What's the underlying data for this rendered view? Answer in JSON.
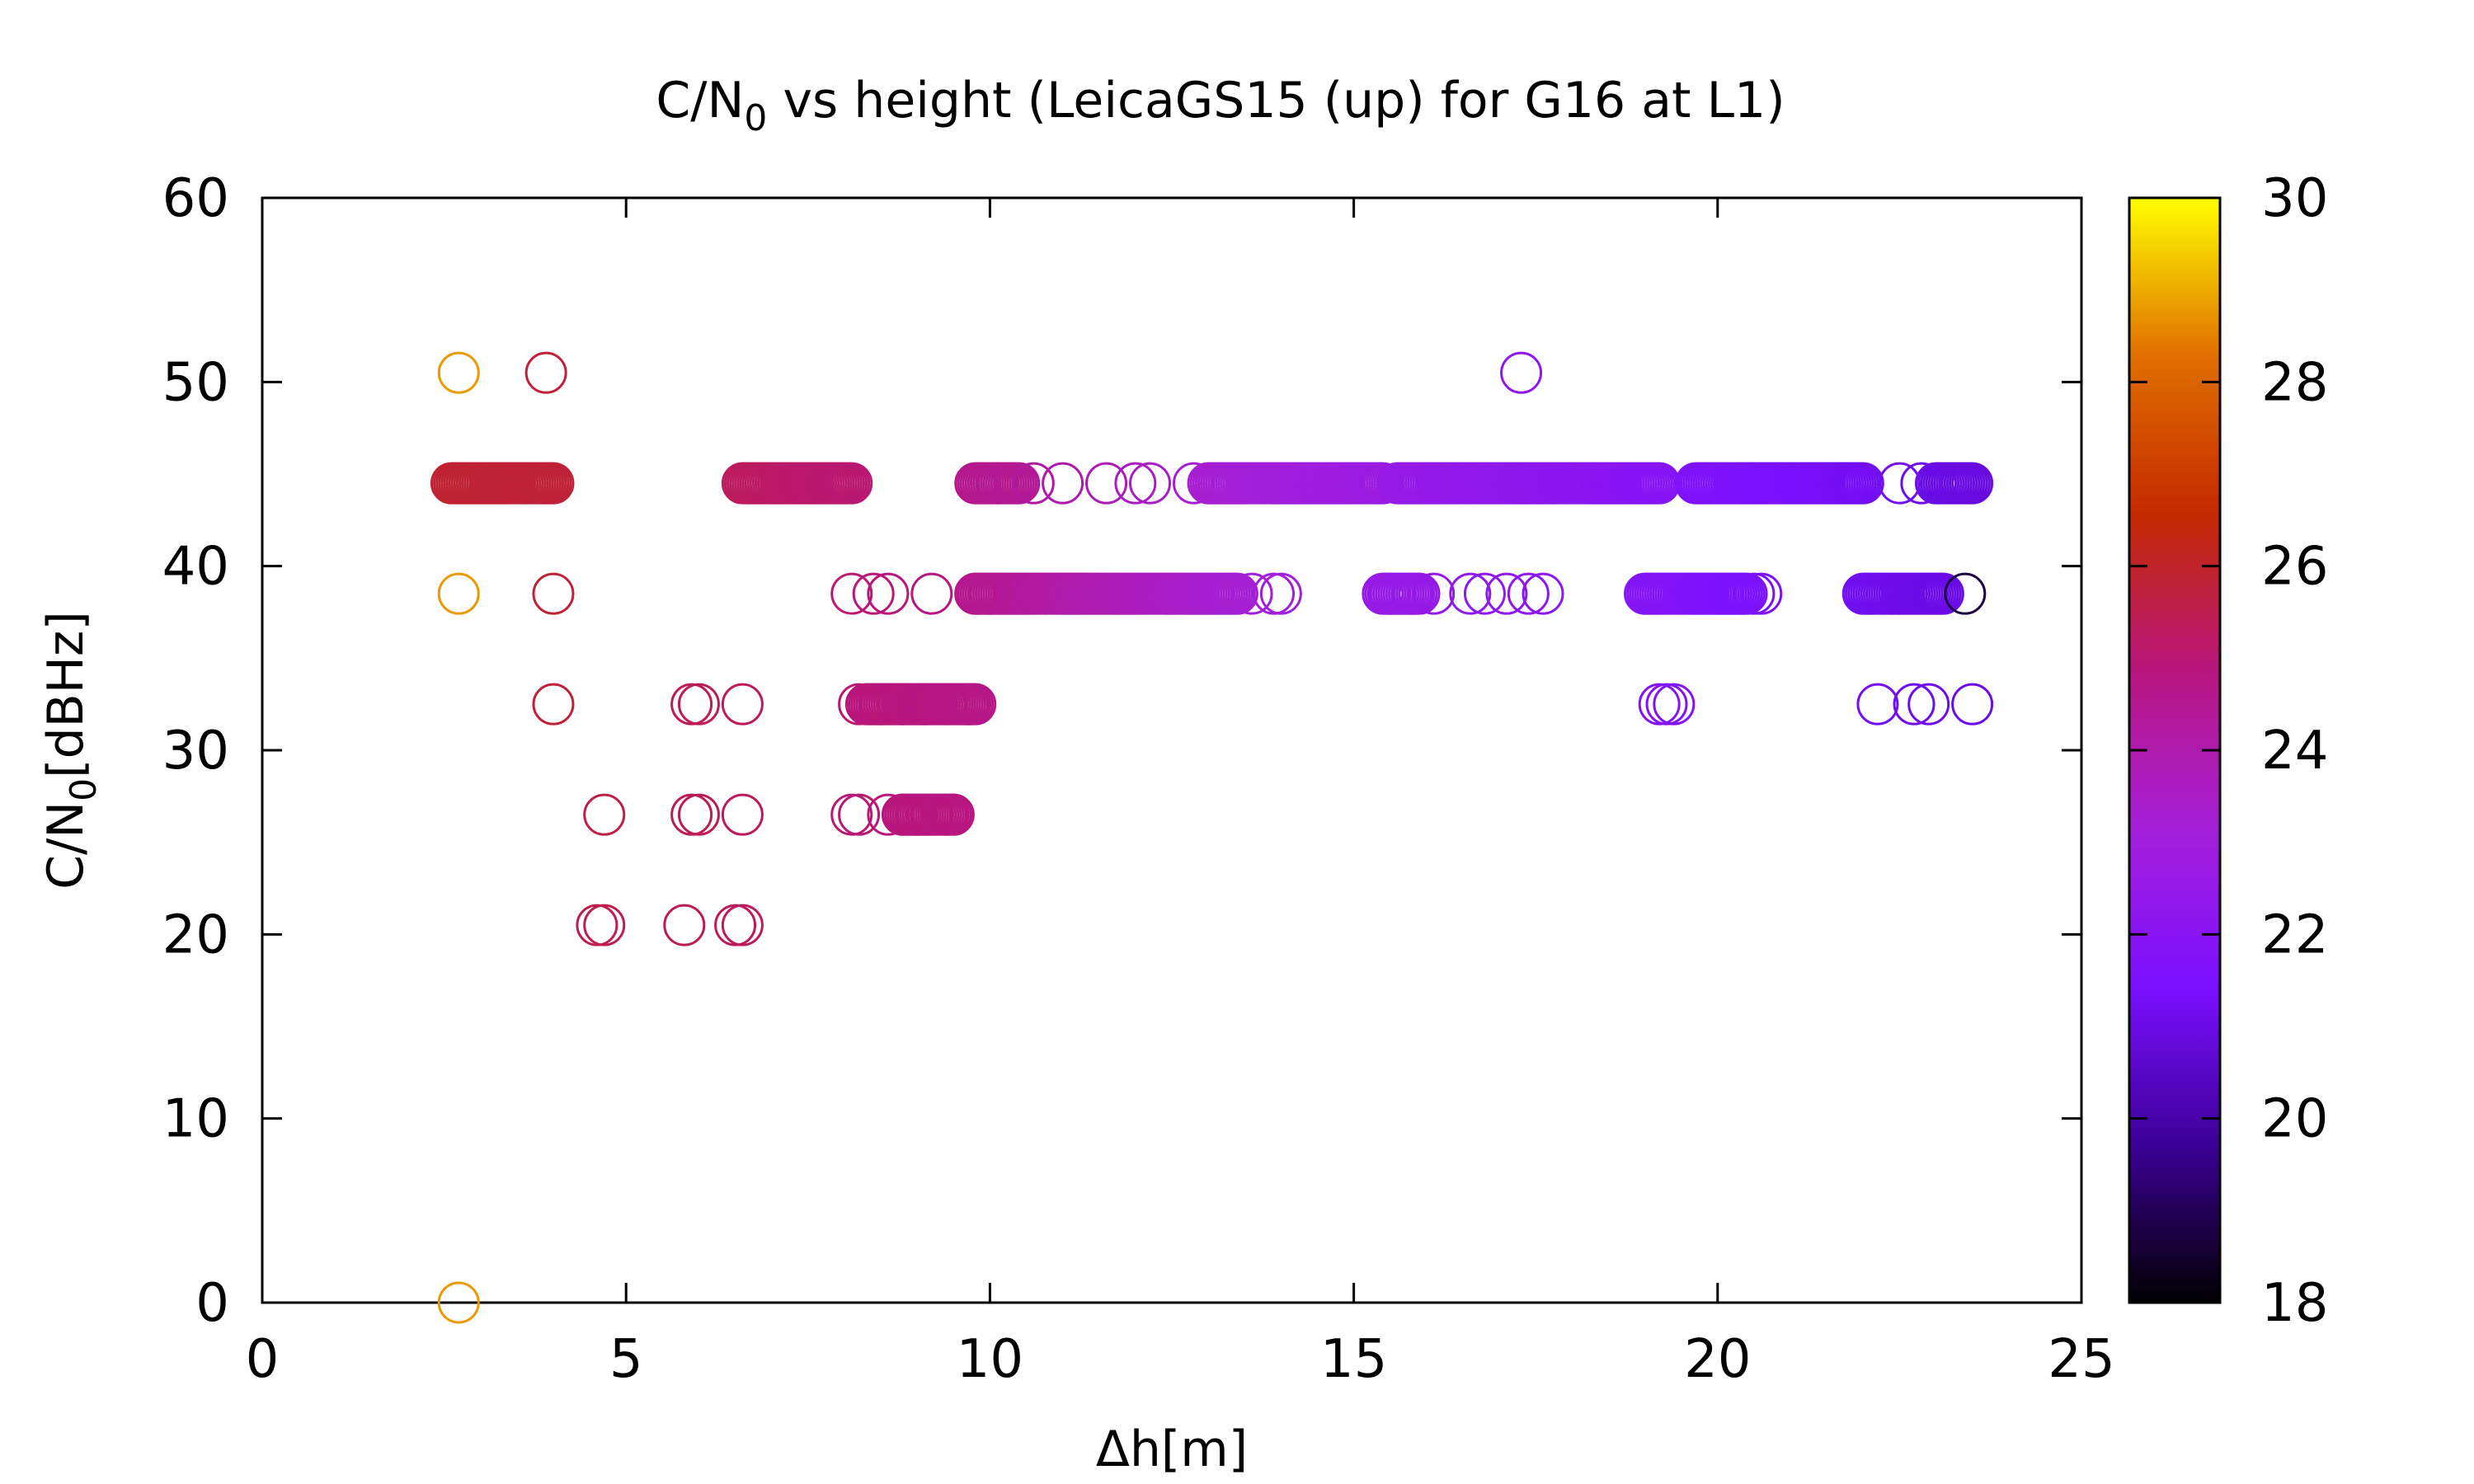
{
  "chart_data": {
    "type": "scatter",
    "title": "C/N0 vs height (LeicaGS15 (up) for G16 at L1)",
    "title_parts": {
      "pre": "C/N",
      "sub": "0",
      "post": " vs height (LeicaGS15 (up) for G16 at L1)"
    },
    "xlabel": "Δh[m]",
    "ylabel_parts": {
      "pre": "C/N",
      "sub": "0",
      "post": "[dBHz]"
    },
    "xlim": [
      0,
      25
    ],
    "ylim": [
      0,
      60
    ],
    "x_ticks": [
      0,
      5,
      10,
      15,
      20,
      25
    ],
    "y_ticks": [
      0,
      10,
      20,
      30,
      40,
      50,
      60
    ],
    "grid": false,
    "legend": "none",
    "marker": "open-circle",
    "colorbar": {
      "range": [
        18,
        30
      ],
      "ticks": [
        18,
        20,
        22,
        24,
        26,
        28,
        30
      ],
      "palette": [
        "#000000",
        "#3c0096",
        "#7a10ff",
        "#a41fd8",
        "#b8167e",
        "#c42a00",
        "#e06f00",
        "#ffff00"
      ]
    },
    "points_note": "each point: [x_m, cn0_dBHz, color_value]",
    "points": [
      [
        2.7,
        50.5,
        28.8
      ],
      [
        3.9,
        50.5,
        25.8
      ],
      [
        17.3,
        50.5,
        22.2
      ],
      [
        2.7,
        38.5,
        28.8
      ],
      [
        4.0,
        38.5,
        25.8
      ],
      [
        4.0,
        32.5,
        25.8
      ],
      [
        2.7,
        0,
        28.8
      ],
      [
        4.7,
        26.5,
        25.6
      ],
      [
        4.7,
        20.5,
        25.5
      ],
      [
        4.6,
        20.5,
        25.5
      ],
      [
        5.8,
        20.5,
        25.4
      ],
      [
        5.9,
        26.5,
        25.4
      ],
      [
        6.0,
        26.5,
        25.4
      ],
      [
        5.9,
        32.5,
        25.4
      ],
      [
        6.0,
        32.5,
        25.4
      ],
      [
        6.6,
        32.5,
        25.3
      ],
      [
        6.6,
        26.5,
        25.3
      ],
      [
        6.5,
        20.5,
        25.3
      ],
      [
        6.6,
        20.5,
        25.3
      ],
      [
        8.1,
        38.5,
        25.0
      ],
      [
        8.4,
        38.5,
        25.0
      ],
      [
        8.6,
        38.5,
        24.9
      ],
      [
        9.2,
        38.5,
        24.8
      ],
      [
        8.1,
        26.5,
        25.0
      ],
      [
        8.2,
        26.5,
        25.0
      ],
      [
        8.6,
        26.5,
        24.9
      ],
      [
        8.8,
        26.5,
        24.9
      ],
      [
        9.0,
        26.5,
        24.8
      ],
      [
        9.2,
        26.5,
        24.8
      ],
      [
        9.4,
        26.5,
        24.8
      ],
      [
        9.5,
        26.5,
        24.8
      ],
      [
        8.2,
        32.5,
        25.0
      ],
      [
        8.5,
        32.5,
        24.9
      ],
      [
        8.8,
        32.5,
        24.9
      ],
      [
        9.1,
        32.5,
        24.8
      ],
      [
        9.4,
        32.5,
        24.8
      ],
      [
        9.7,
        32.5,
        24.7
      ],
      [
        9.8,
        38.5,
        24.6
      ],
      [
        10.0,
        38.5,
        24.5
      ],
      [
        10.1,
        44.5,
        24.5
      ],
      [
        10.6,
        44.5,
        24.2
      ],
      [
        11.0,
        44.5,
        24.0
      ],
      [
        11.6,
        44.5,
        23.8
      ],
      [
        12.0,
        44.5,
        23.6
      ],
      [
        12.2,
        44.5,
        23.5
      ],
      [
        12.8,
        44.5,
        23.3
      ],
      [
        13.6,
        38.5,
        23.1
      ],
      [
        13.9,
        38.5,
        23.0
      ],
      [
        14.0,
        38.5,
        23.0
      ],
      [
        15.5,
        38.5,
        22.6
      ],
      [
        15.8,
        38.5,
        22.5
      ],
      [
        16.1,
        38.5,
        22.5
      ],
      [
        16.6,
        38.5,
        22.4
      ],
      [
        16.8,
        38.5,
        22.3
      ],
      [
        17.1,
        38.5,
        22.3
      ],
      [
        17.4,
        38.5,
        22.2
      ],
      [
        17.6,
        38.5,
        22.2
      ],
      [
        19.2,
        32.5,
        21.8
      ],
      [
        19.3,
        32.5,
        21.8
      ],
      [
        19.4,
        32.5,
        21.8
      ],
      [
        20.5,
        38.5,
        21.5
      ],
      [
        20.6,
        38.5,
        21.5
      ],
      [
        22.2,
        32.5,
        21.2
      ],
      [
        22.7,
        32.5,
        21.1
      ],
      [
        22.9,
        32.5,
        21.1
      ],
      [
        23.5,
        32.5,
        21.0
      ],
      [
        22.5,
        44.5,
        21.2
      ],
      [
        22.8,
        44.5,
        21.1
      ],
      [
        23.4,
        38.5,
        18.8
      ]
    ],
    "runs_note": "dense horizontal runs of overlapping circles: [x_start, x_end, cn0_dBHz, color_start, color_end]",
    "runs": [
      [
        2.6,
        4.0,
        44.5,
        25.9,
        25.8
      ],
      [
        6.6,
        8.1,
        44.5,
        25.3,
        25.0
      ],
      [
        9.8,
        10.4,
        44.5,
        24.6,
        24.4
      ],
      [
        9.8,
        13.4,
        38.5,
        24.6,
        23.2
      ],
      [
        13.0,
        15.4,
        44.5,
        23.3,
        22.7
      ],
      [
        15.6,
        19.2,
        44.5,
        22.6,
        21.9
      ],
      [
        15.4,
        15.9,
        38.5,
        22.6,
        22.5
      ],
      [
        19.0,
        20.4,
        38.5,
        21.9,
        21.5
      ],
      [
        19.7,
        22.0,
        44.5,
        21.7,
        21.2
      ],
      [
        22.0,
        23.1,
        38.5,
        21.2,
        21.0
      ],
      [
        23.0,
        23.5,
        44.5,
        21.0,
        20.9
      ],
      [
        8.3,
        9.8,
        32.5,
        24.9,
        24.7
      ],
      [
        8.8,
        9.5,
        26.5,
        24.9,
        24.8
      ]
    ]
  }
}
